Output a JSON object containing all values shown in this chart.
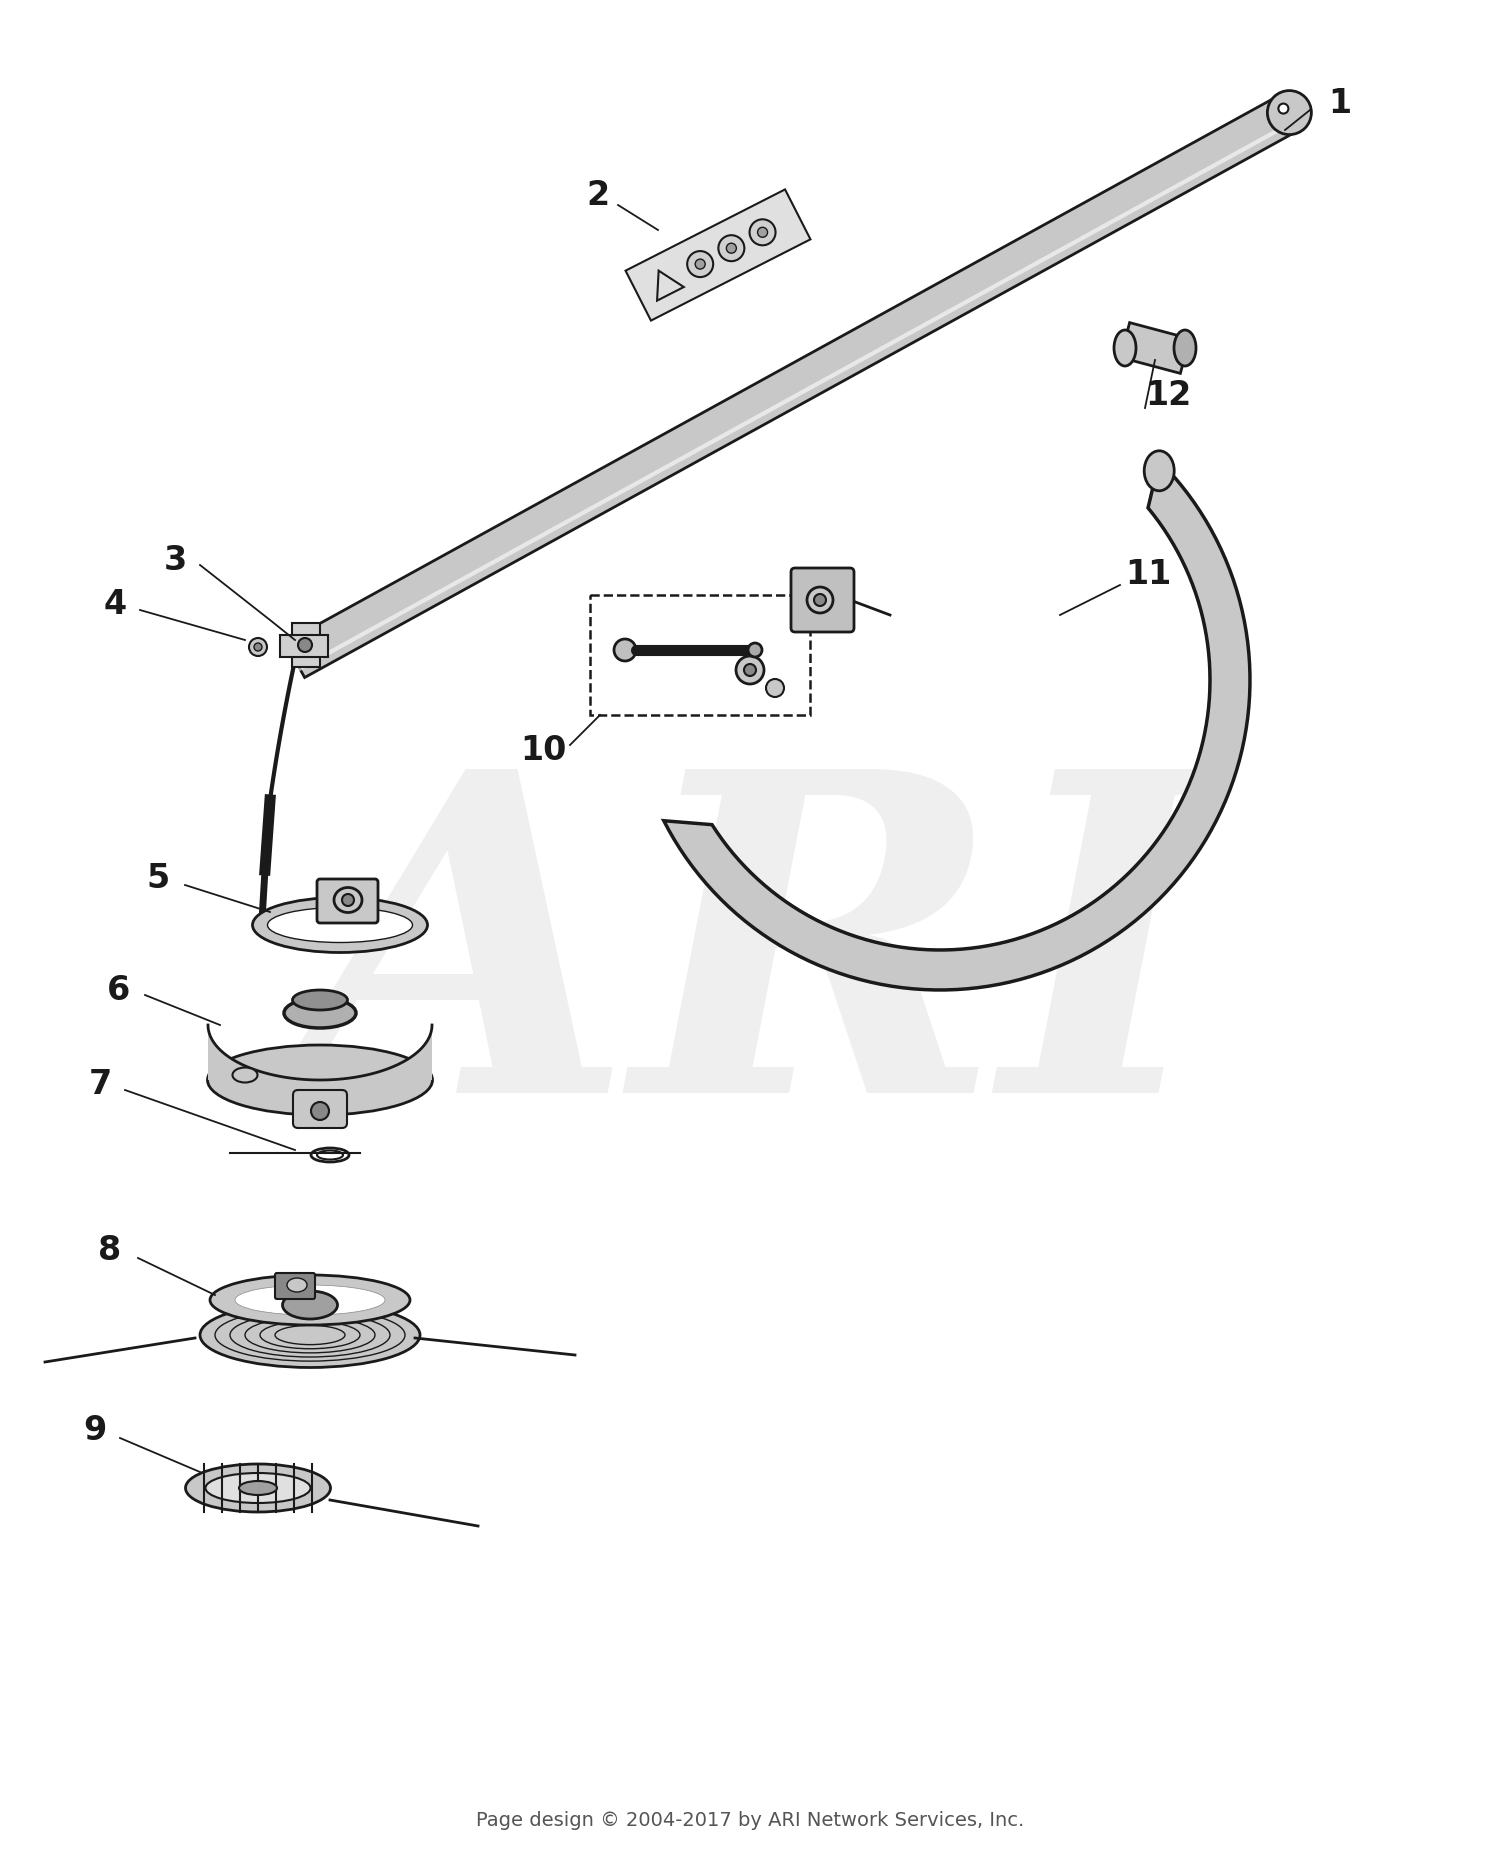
{
  "footer": "Page design © 2004-2017 by ARI Network Services, Inc.",
  "bg_color": "#ffffff",
  "line_color": "#1a1a1a",
  "light_gray": "#c8c8c8",
  "mid_gray": "#a0a0a0",
  "watermark_text": "ARI",
  "watermark_color": "#d8d8d8",
  "figsize": [
    15.0,
    18.53
  ],
  "dpi": 100
}
